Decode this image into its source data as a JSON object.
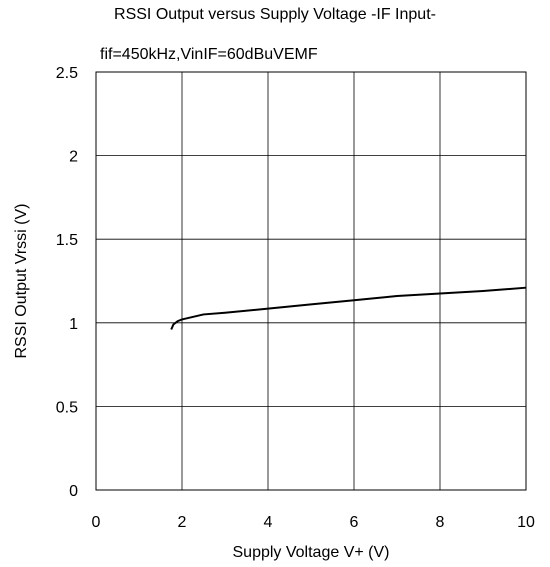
{
  "chart_data": {
    "type": "line",
    "title": "RSSI Output versus Supply Voltage -IF Input-",
    "subtitle": "fif=450kHz,VinIF=60dBuVEMF",
    "xlabel": "Supply Voltage V+ (V)",
    "ylabel": "RSSI Output Vrssi (V)",
    "xlim": [
      0,
      10
    ],
    "ylim": [
      0,
      2.5
    ],
    "xticks": [
      0,
      2,
      4,
      6,
      8,
      10
    ],
    "yticks": [
      0,
      0.5,
      1,
      1.5,
      2,
      2.5
    ],
    "xtick_labels": [
      "0",
      "2",
      "4",
      "6",
      "8",
      "10"
    ],
    "ytick_labels": [
      "0",
      "0.5",
      "1",
      "1.5",
      "2",
      "2.5"
    ],
    "grid": true,
    "series": [
      {
        "x": [
          1.75,
          1.8,
          1.9,
          2.0,
          2.5,
          3.0,
          4.0,
          5.0,
          6.0,
          7.0,
          8.0,
          9.0,
          10.0
        ],
        "y": [
          0.96,
          0.99,
          1.01,
          1.02,
          1.05,
          1.06,
          1.085,
          1.11,
          1.135,
          1.16,
          1.175,
          1.19,
          1.21
        ]
      }
    ]
  },
  "colors": {
    "line": "#000000",
    "grid": "#000000",
    "background": "#ffffff"
  }
}
